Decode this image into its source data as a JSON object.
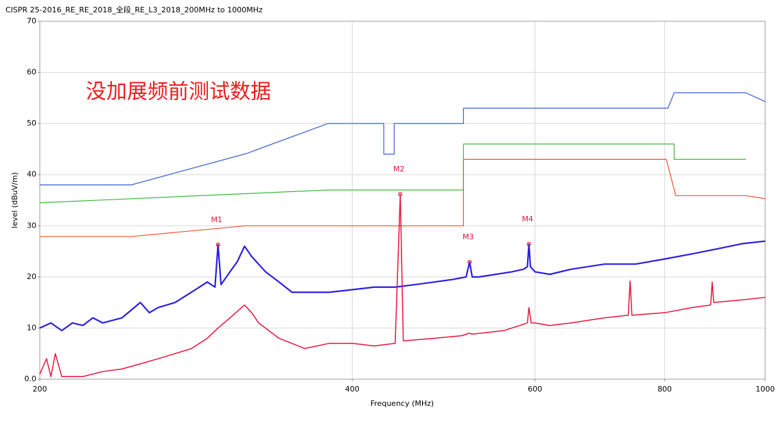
{
  "chart_data": {
    "type": "line",
    "title": "CISPR 25-2016_RE_RE_2018_全段_RE_L3_2018_200MHz to 1000MHz",
    "annotation": "没加展频前测试数据",
    "x_label": "Frequency (MHz)",
    "y_label": "level (dBuV/m)",
    "x_log": true,
    "grid": true,
    "xlim": [
      200,
      1000
    ],
    "xticks": [
      200,
      400,
      600,
      800,
      1000
    ],
    "ylim": [
      0,
      70
    ],
    "yticks": [
      {
        "value": 0,
        "label": "0.0"
      },
      10,
      20,
      30,
      40,
      50,
      60,
      70
    ],
    "series": [
      {
        "color": "#3a5fd6",
        "width": 1.2,
        "x": [
          200,
          245,
          316,
          379,
          429,
          429,
          439,
          439,
          512,
          512,
          806,
          817,
          958,
          1000
        ],
        "values": [
          38,
          38,
          44.1,
          50,
          50,
          44,
          44,
          50,
          50,
          53,
          53,
          56,
          56,
          54.3
        ]
      },
      {
        "color": "#3cb83c",
        "width": 1.2,
        "x": [
          200,
          379,
          512,
          512,
          817,
          817,
          958
        ],
        "values": [
          34.5,
          37,
          37,
          46,
          46,
          43,
          43
        ]
      },
      {
        "color": "#f0502c",
        "width": 1.2,
        "x": [
          200,
          245,
          316,
          512,
          512,
          803,
          820,
          958,
          1000
        ],
        "values": [
          27.9,
          27.9,
          30,
          30,
          43,
          43,
          35.9,
          35.9,
          35.3
        ]
      },
      {
        "color": "#2a1fe0",
        "width": 2.2,
        "x": [
          200,
          205,
          210,
          215,
          220,
          225,
          230,
          240,
          250,
          255,
          260,
          270,
          280,
          290,
          295,
          297,
          299,
          305,
          310,
          315,
          320,
          330,
          340,
          350,
          360,
          380,
          400,
          420,
          440,
          460,
          480,
          500,
          515,
          519,
          522,
          530,
          550,
          570,
          585,
          590,
          592,
          594,
          600,
          620,
          650,
          700,
          750,
          800,
          850,
          900,
          950,
          1000
        ],
        "values": [
          10,
          11,
          9.5,
          11,
          10.5,
          12,
          11,
          12,
          15,
          13,
          14,
          15,
          17,
          19,
          18,
          26.3,
          18.5,
          21,
          23,
          26,
          24,
          21,
          19,
          17,
          17,
          17,
          17.5,
          18,
          18,
          18.5,
          19,
          19.5,
          20,
          22.9,
          20,
          20,
          20.5,
          21,
          21.5,
          22,
          26.4,
          22,
          21,
          20.5,
          21.5,
          22.5,
          22.5,
          23.5,
          24.5,
          25.5,
          26.5,
          27
        ]
      },
      {
        "color": "#e8123a",
        "width": 1.5,
        "x": [
          200,
          203,
          205,
          207,
          210,
          220,
          230,
          240,
          250,
          260,
          270,
          280,
          290,
          297,
          305,
          315,
          320,
          325,
          340,
          360,
          380,
          400,
          420,
          440,
          445,
          448,
          480,
          510,
          519,
          522,
          560,
          580,
          590,
          592,
          595,
          600,
          620,
          650,
          700,
          738,
          741,
          744,
          800,
          850,
          886,
          889,
          892,
          950,
          1000
        ],
        "values": [
          1,
          4,
          0.5,
          5,
          0.5,
          0.5,
          1.5,
          2,
          3,
          4,
          5,
          6,
          8,
          10,
          12,
          14.5,
          13,
          11,
          8,
          6,
          7,
          7,
          6.5,
          7,
          36.2,
          7.5,
          8,
          8.5,
          9,
          8.8,
          9.5,
          10.5,
          11,
          14,
          11,
          11,
          10.5,
          11,
          12,
          12.5,
          19.2,
          12.5,
          13,
          14,
          14.5,
          19,
          15,
          15.5,
          16
        ]
      }
    ],
    "markers": [
      {
        "name": "M1",
        "x": 297,
        "y": 26.3
      },
      {
        "name": "M2",
        "x": 445,
        "y": 36.2
      },
      {
        "name": "M3",
        "x": 519,
        "y": 22.9
      },
      {
        "name": "M4",
        "x": 592,
        "y": 26.4
      }
    ],
    "marker_color": "#e8123a"
  }
}
